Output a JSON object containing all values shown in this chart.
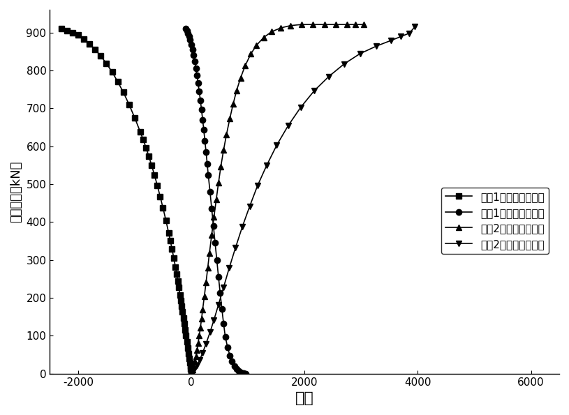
{
  "title": "",
  "xlabel": "应变",
  "ylabel": "支管荷载（kN）",
  "xlim": [
    -2500,
    6500
  ],
  "ylim": [
    0,
    960
  ],
  "xticks": [
    -2000,
    0,
    2000,
    4000,
    6000
  ],
  "yticks": [
    0,
    100,
    200,
    300,
    400,
    500,
    600,
    700,
    800,
    900
  ],
  "series": [
    {
      "label": "锤療1号位置环向应变",
      "marker": "s",
      "x": [
        -2300,
        -2200,
        -2100,
        -2000,
        -1900,
        -1800,
        -1700,
        -1600,
        -1500,
        -1400,
        -1300,
        -1200,
        -1100,
        -1000,
        -900,
        -850,
        -800,
        -750,
        -700,
        -650,
        -600,
        -550,
        -500,
        -450,
        -400,
        -370,
        -340,
        -310,
        -280,
        -260,
        -240,
        -220,
        -200,
        -185,
        -170,
        -155,
        -140,
        -125,
        -110,
        -95,
        -80,
        -65,
        -50,
        -38,
        -28,
        -18,
        -10,
        -5,
        0
      ],
      "y": [
        910,
        905,
        900,
        893,
        883,
        870,
        855,
        838,
        818,
        796,
        770,
        742,
        710,
        675,
        637,
        617,
        596,
        573,
        549,
        523,
        496,
        467,
        437,
        405,
        371,
        350,
        328,
        305,
        281,
        263,
        245,
        227,
        208,
        193,
        178,
        163,
        147,
        131,
        115,
        100,
        84,
        68,
        53,
        40,
        29,
        19,
        12,
        6,
        0
      ]
    },
    {
      "label": "锤療1号位置轴向应变",
      "marker": "o",
      "x": [
        -100,
        -80,
        -60,
        -40,
        -20,
        0,
        20,
        40,
        60,
        80,
        100,
        120,
        140,
        160,
        180,
        200,
        220,
        240,
        260,
        280,
        300,
        330,
        360,
        390,
        420,
        450,
        480,
        510,
        540,
        570,
        600,
        640,
        680,
        720,
        760,
        800,
        840,
        880,
        920,
        960
      ],
      "y": [
        910,
        905,
        898,
        890,
        880,
        868,
        855,
        840,
        824,
        806,
        787,
        766,
        744,
        721,
        696,
        670,
        643,
        614,
        585,
        554,
        523,
        480,
        435,
        390,
        345,
        300,
        255,
        212,
        170,
        132,
        97,
        70,
        48,
        32,
        20,
        12,
        7,
        3,
        1,
        0
      ]
    },
    {
      "label": "锤療2号位置轴向应变",
      "marker": "^",
      "x": [
        0,
        20,
        40,
        60,
        80,
        100,
        120,
        140,
        160,
        180,
        200,
        230,
        260,
        290,
        320,
        360,
        400,
        440,
        480,
        520,
        570,
        620,
        680,
        740,
        800,
        870,
        950,
        1050,
        1150,
        1280,
        1420,
        1580,
        1750,
        1950,
        2150,
        2350,
        2550,
        2750,
        2900,
        3050
      ],
      "y": [
        0,
        10,
        20,
        32,
        46,
        62,
        80,
        100,
        121,
        144,
        169,
        204,
        241,
        279,
        318,
        366,
        413,
        459,
        503,
        545,
        590,
        630,
        673,
        712,
        747,
        780,
        812,
        843,
        866,
        887,
        902,
        912,
        918,
        921,
        921,
        921,
        921,
        921,
        921,
        921
      ]
    },
    {
      "label": "锤療2号位置环向应变",
      "marker": "v",
      "x": [
        0,
        50,
        100,
        150,
        200,
        260,
        330,
        400,
        480,
        570,
        670,
        780,
        900,
        1030,
        1170,
        1330,
        1510,
        1710,
        1930,
        2170,
        2430,
        2700,
        2980,
        3270,
        3530,
        3700,
        3850,
        3950
      ],
      "y": [
        0,
        10,
        22,
        37,
        55,
        79,
        109,
        142,
        182,
        228,
        279,
        332,
        387,
        441,
        496,
        549,
        603,
        654,
        702,
        746,
        784,
        817,
        844,
        864,
        879,
        889,
        898,
        915
      ]
    }
  ],
  "background_color": "#ffffff",
  "line_color": "black",
  "markersize": 6,
  "linewidth": 1.2
}
